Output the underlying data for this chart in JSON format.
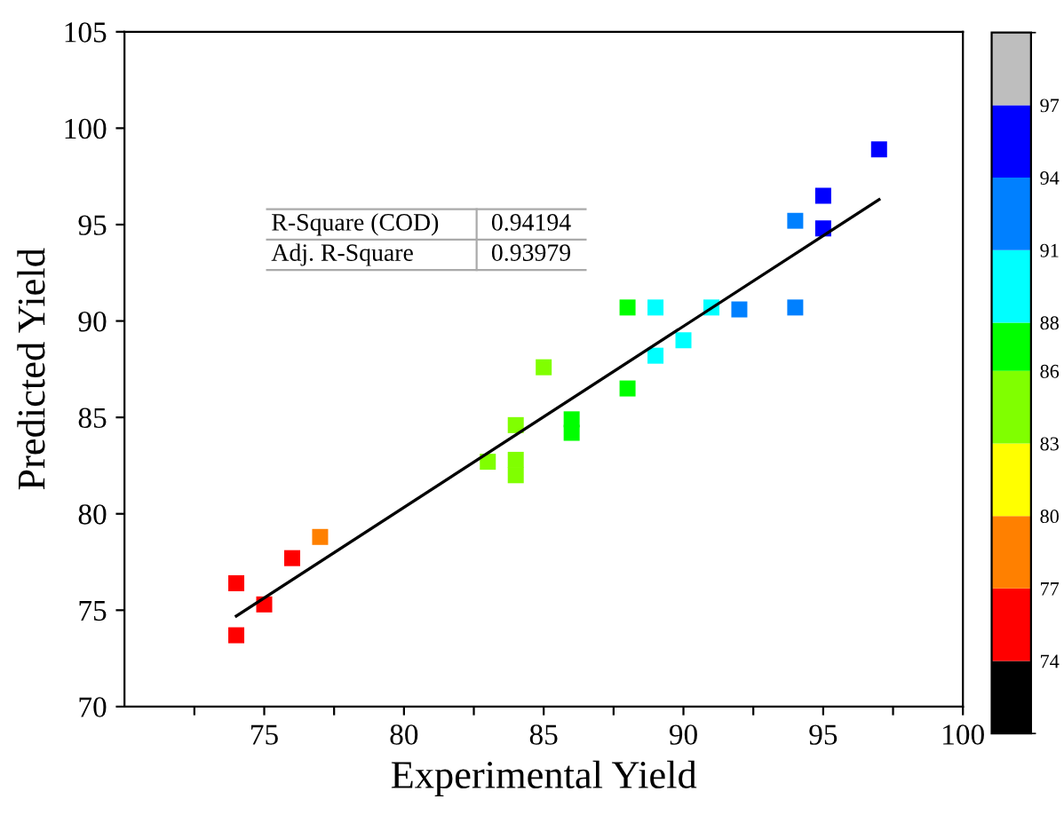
{
  "chart_data": {
    "type": "scatter",
    "xlabel": "Experimental Yield",
    "ylabel": "Predicted Yield",
    "xlim": [
      70,
      100
    ],
    "ylim": [
      70,
      105
    ],
    "xticks": [
      {
        "value": 72.5,
        "label": null
      },
      75,
      {
        "value": 77.5,
        "label": null
      },
      80,
      {
        "value": 82.5,
        "label": null
      },
      85,
      {
        "value": 87.5,
        "label": null
      },
      90,
      {
        "value": 92.5,
        "label": null
      },
      95,
      {
        "value": 97.5,
        "label": null
      },
      100
    ],
    "yticks": [
      70,
      75,
      80,
      85,
      90,
      95,
      100,
      105
    ],
    "clim": [
      71,
      100
    ],
    "cticks": [
      74,
      77,
      80,
      83,
      86,
      88,
      91,
      94,
      97
    ],
    "grid": false,
    "marker": "square",
    "annotations": [
      "R-Square (COD)",
      "0.94194",
      "Adj. R-Square",
      "0.93979"
    ],
    "series": [
      {
        "x": [
          74,
          74,
          75,
          76,
          77,
          83,
          84,
          84,
          84,
          85,
          86,
          86,
          88,
          88,
          89,
          89,
          90,
          91,
          92,
          94,
          94,
          95,
          95,
          97
        ],
        "values": [
          76.4,
          73.7,
          75.3,
          77.7,
          78.8,
          82.7,
          84.6,
          82.8,
          82.0,
          87.6,
          84.9,
          84.2,
          90.7,
          86.5,
          90.7,
          88.2,
          89.0,
          90.7,
          90.6,
          90.7,
          95.2,
          96.5,
          94.8,
          98.9
        ],
        "colors": [
          "#ff0000",
          "#ff0000",
          "#ff0000",
          "#ff0000",
          "#ff8000",
          "#80ff00",
          "#80ff00",
          "#80ff00",
          "#80ff00",
          "#80ff00",
          "#00ff00",
          "#00ff00",
          "#00ff00",
          "#00ff00",
          "#00ffff",
          "#00ffff",
          "#00ffff",
          "#00ffff",
          "#0080ff",
          "#0080ff",
          "#0080ff",
          "#0000ff",
          "#0000ff",
          "#0000ff"
        ]
      },
      {
        "type": "line",
        "x": [
          74,
          97
        ],
        "values": [
          74.7,
          96.3
        ],
        "color": "#000000",
        "marker": "none",
        "line_style": "solid"
      }
    ]
  }
}
